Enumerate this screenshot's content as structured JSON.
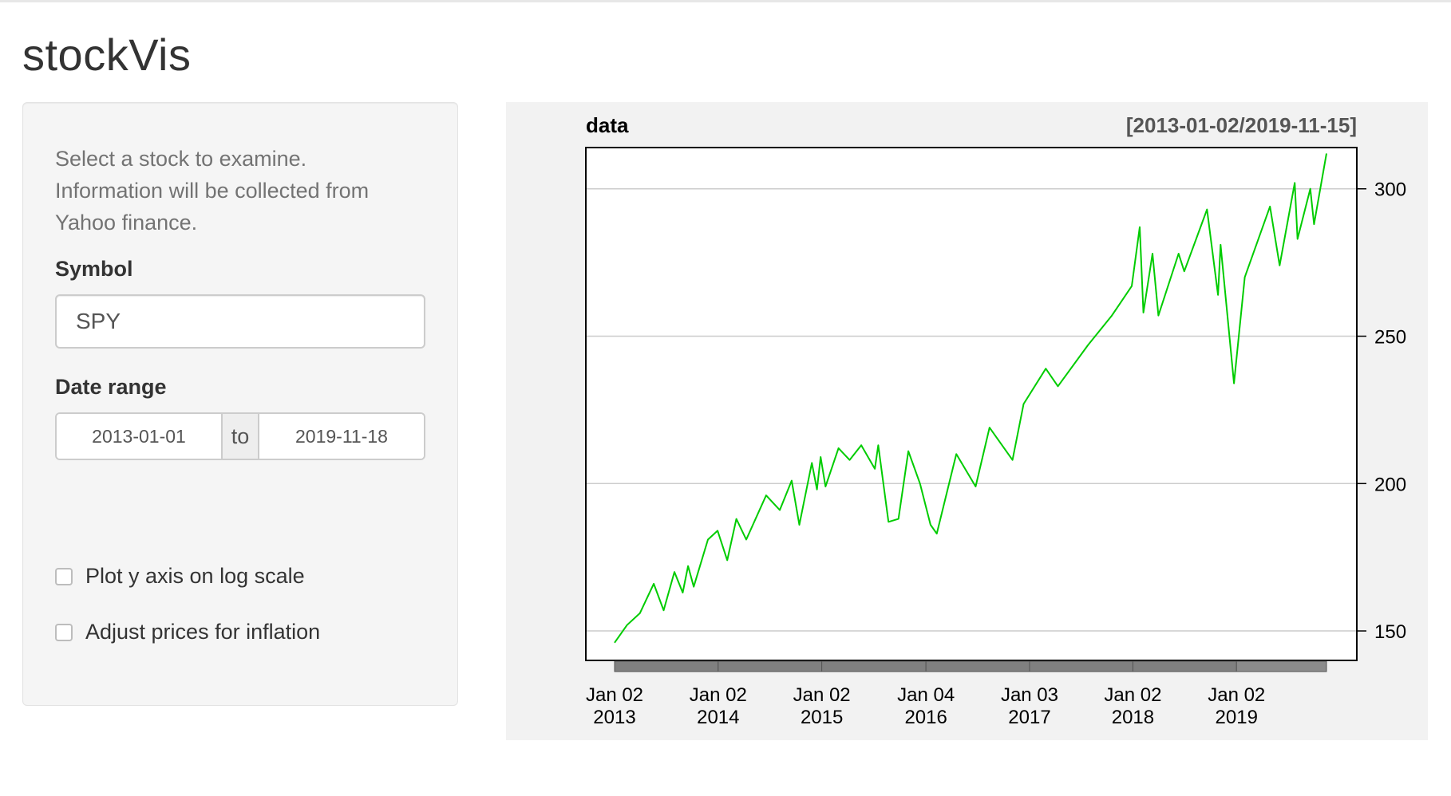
{
  "app": {
    "title": "stockVis"
  },
  "sidebar": {
    "help_lines": [
      "Select a stock to examine.",
      "Information will be collected from",
      "Yahoo finance."
    ],
    "symbol": {
      "label": "Symbol",
      "value": "SPY"
    },
    "date_range": {
      "label": "Date range",
      "start": "2013-01-01",
      "separator": "to",
      "end": "2019-11-18"
    },
    "checkboxes": [
      {
        "label": "Plot y axis on log scale",
        "checked": false
      },
      {
        "label": "Adjust prices for inflation",
        "checked": false
      }
    ]
  },
  "chart_data": {
    "type": "line",
    "title": "data",
    "subtitle": "[2013-01-02/2019-11-15]",
    "line_color": "#00cc00",
    "grid": true,
    "ylim": [
      140,
      314
    ],
    "y_ticks": [
      150,
      200,
      250,
      300
    ],
    "x_start": "2013-01-02",
    "x_end": "2019-11-15",
    "x_ticks": [
      {
        "date": "2013-01-02",
        "line1": "Jan 02",
        "line2": "2013"
      },
      {
        "date": "2014-01-02",
        "line1": "Jan 02",
        "line2": "2014"
      },
      {
        "date": "2015-01-02",
        "line1": "Jan 02",
        "line2": "2015"
      },
      {
        "date": "2016-01-04",
        "line1": "Jan 04",
        "line2": "2016"
      },
      {
        "date": "2017-01-03",
        "line1": "Jan 03",
        "line2": "2017"
      },
      {
        "date": "2018-01-02",
        "line1": "Jan 02",
        "line2": "2018"
      },
      {
        "date": "2019-01-02",
        "line1": "Jan 02",
        "line2": "2019"
      }
    ],
    "points": [
      [
        "2013-01-02",
        146
      ],
      [
        "2013-02-15",
        152
      ],
      [
        "2013-04-01",
        156
      ],
      [
        "2013-05-20",
        166
      ],
      [
        "2013-06-24",
        157
      ],
      [
        "2013-08-01",
        170
      ],
      [
        "2013-08-30",
        163
      ],
      [
        "2013-09-18",
        172
      ],
      [
        "2013-10-08",
        165
      ],
      [
        "2013-11-27",
        181
      ],
      [
        "2013-12-31",
        184
      ],
      [
        "2014-02-03",
        174
      ],
      [
        "2014-03-07",
        188
      ],
      [
        "2014-04-11",
        181
      ],
      [
        "2014-06-20",
        196
      ],
      [
        "2014-08-07",
        191
      ],
      [
        "2014-09-18",
        201
      ],
      [
        "2014-10-15",
        186
      ],
      [
        "2014-11-28",
        207
      ],
      [
        "2014-12-16",
        198
      ],
      [
        "2014-12-29",
        209
      ],
      [
        "2015-01-15",
        199
      ],
      [
        "2015-03-02",
        212
      ],
      [
        "2015-04-10",
        208
      ],
      [
        "2015-05-21",
        213
      ],
      [
        "2015-07-08",
        205
      ],
      [
        "2015-07-20",
        213
      ],
      [
        "2015-08-25",
        187
      ],
      [
        "2015-09-29",
        188
      ],
      [
        "2015-11-03",
        211
      ],
      [
        "2015-12-14",
        200
      ],
      [
        "2016-01-20",
        186
      ],
      [
        "2016-02-11",
        183
      ],
      [
        "2016-04-20",
        210
      ],
      [
        "2016-06-27",
        199
      ],
      [
        "2016-08-15",
        219
      ],
      [
        "2016-11-04",
        208
      ],
      [
        "2016-12-13",
        227
      ],
      [
        "2017-03-01",
        239
      ],
      [
        "2017-04-13",
        233
      ],
      [
        "2017-07-28",
        247
      ],
      [
        "2017-10-20",
        257
      ],
      [
        "2017-12-29",
        267
      ],
      [
        "2018-01-26",
        287
      ],
      [
        "2018-02-08",
        258
      ],
      [
        "2018-03-12",
        278
      ],
      [
        "2018-04-02",
        257
      ],
      [
        "2018-06-12",
        278
      ],
      [
        "2018-07-02",
        272
      ],
      [
        "2018-09-20",
        293
      ],
      [
        "2018-10-29",
        264
      ],
      [
        "2018-11-07",
        281
      ],
      [
        "2018-12-24",
        234
      ],
      [
        "2019-01-31",
        270
      ],
      [
        "2019-04-30",
        294
      ],
      [
        "2019-06-03",
        274
      ],
      [
        "2019-07-26",
        302
      ],
      [
        "2019-08-05",
        283
      ],
      [
        "2019-09-19",
        300
      ],
      [
        "2019-10-02",
        288
      ],
      [
        "2019-11-15",
        312
      ]
    ]
  }
}
